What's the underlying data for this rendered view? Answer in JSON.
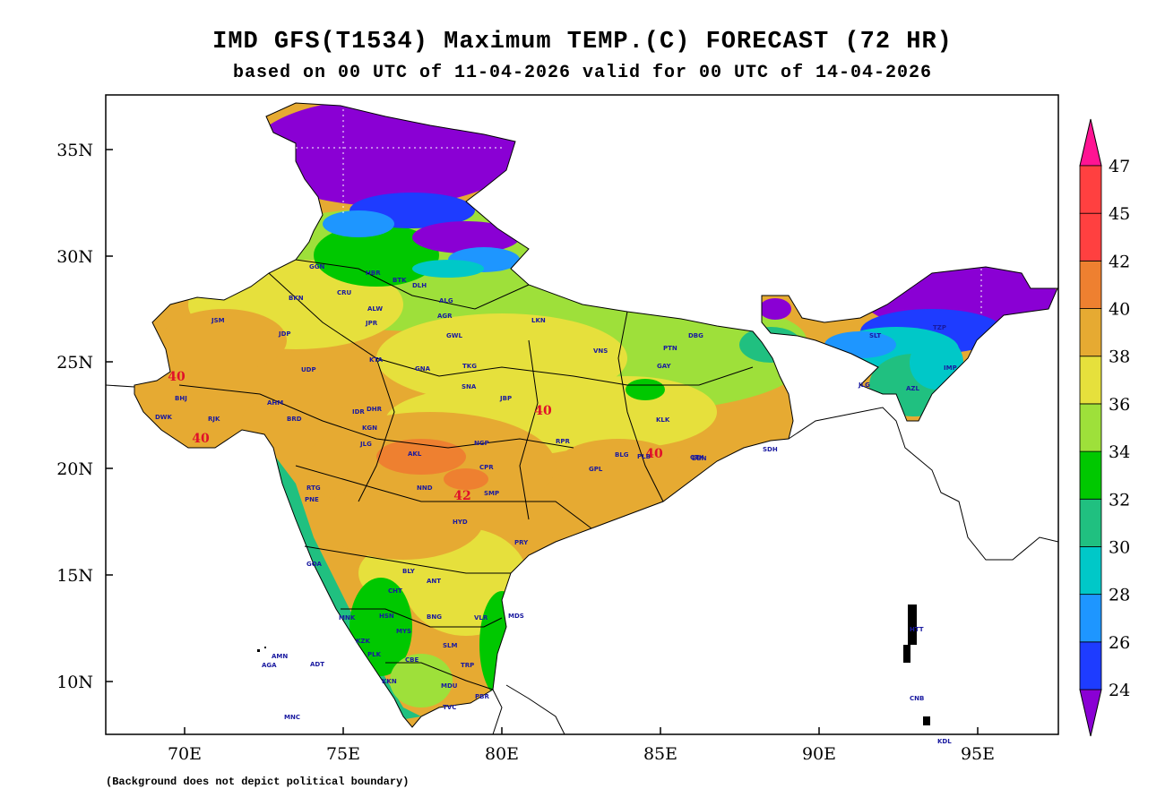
{
  "title": "IMD GFS(T1534) Maximum TEMP.(C) FORECAST (72 HR)",
  "subtitle": "based on 00 UTC of 11-04-2026 valid for 00 UTC of 14-04-2026",
  "footnote": "(Background does not depict political boundary)",
  "axes": {
    "lon_labels": [
      "70E",
      "75E",
      "80E",
      "85E",
      "90E",
      "95E"
    ],
    "lat_labels": [
      "35N",
      "30N",
      "25N",
      "20N",
      "15N",
      "10N"
    ]
  },
  "colorbar": {
    "ticks": [
      "24",
      "26",
      "28",
      "30",
      "32",
      "34",
      "36",
      "38",
      "40",
      "42",
      "45",
      "47"
    ],
    "colors": [
      "#8a00d4",
      "#1e3cff",
      "#1e96ff",
      "#00c8c8",
      "#20c080",
      "#00c800",
      "#9ee03a",
      "#e6e03c",
      "#e6aa32",
      "#ee8030",
      "#ff4040",
      "#ff1493"
    ]
  },
  "contour_labels": [
    "40",
    "40",
    "40",
    "40",
    "42"
  ],
  "cities": [
    "GGN",
    "HBR",
    "BKN",
    "CRU",
    "JPR",
    "ALW",
    "DLH",
    "BTK",
    "ALG",
    "AGR",
    "GWL",
    "JSM",
    "JDP",
    "UDP",
    "KTA",
    "GNA",
    "TKG",
    "SNA",
    "JBP",
    "AHM",
    "BRD",
    "BHJ",
    "RJK",
    "DWK",
    "IDR",
    "DHR",
    "KGN",
    "JLG",
    "AKL",
    "NGP",
    "CPR",
    "SMP",
    "HYD",
    "NND",
    "PNE",
    "RTG",
    "GOA",
    "BLY",
    "ANT",
    "CHT",
    "HSN",
    "MYS",
    "BNG",
    "VLR",
    "MDS",
    "KZK",
    "PLK",
    "CBE",
    "SLM",
    "TRP",
    "KKN",
    "MDU",
    "TVC",
    "PBR",
    "PTN",
    "VNS",
    "LKN",
    "BBN",
    "PRY",
    "CTX",
    "GPL",
    "BLG",
    "RPR",
    "GAY",
    "KLK",
    "SDH",
    "MNC",
    "AMN",
    "AGA",
    "MNK",
    "ADT",
    "CNB",
    "HTT",
    "KDL",
    "IMP",
    "TZP",
    "AZL",
    "SLT",
    "JLG2",
    "PLB",
    "DBG"
  ]
}
